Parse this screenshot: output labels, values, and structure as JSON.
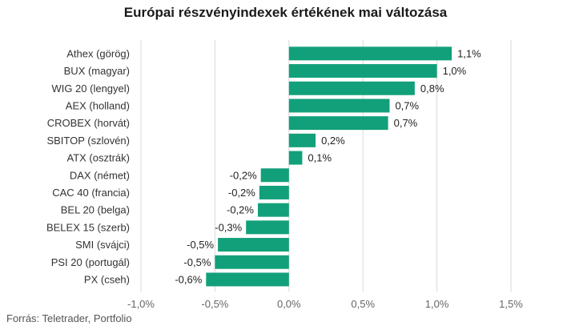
{
  "chart_data": {
    "type": "bar",
    "orientation": "horizontal",
    "title": "Európai részvényindexek értékének mai változása",
    "source": "Forrás: Teletrader, Portfolio",
    "categories": [
      "Athex (görög)",
      "BUX (magyar)",
      "WIG 20 (lengyel)",
      "AEX (holland)",
      "CROBEX (horvát)",
      "SBITOP (szlovén)",
      "ATX (osztrák)",
      "DAX (német)",
      "CAC 40 (francia)",
      "BEL 20 (belga)",
      "BELEX 15 (szerb)",
      "SMI (svájci)",
      "PSI 20 (portugál)",
      "PX (cseh)"
    ],
    "values": [
      1.1,
      1.0,
      0.85,
      0.68,
      0.67,
      0.18,
      0.09,
      -0.19,
      -0.2,
      -0.21,
      -0.29,
      -0.48,
      -0.5,
      -0.56
    ],
    "value_labels": [
      "1,1%",
      "1,0%",
      "0,8%",
      "0,7%",
      "0,7%",
      "0,2%",
      "0,1%",
      "-0,2%",
      "-0,2%",
      "-0,2%",
      "-0,3%",
      "-0,5%",
      "-0,5%",
      "-0,6%"
    ],
    "xlim": [
      -1.0,
      1.5
    ],
    "xticks": [
      -1.0,
      -0.5,
      0.0,
      0.5,
      1.0,
      1.5
    ],
    "xtick_labels": [
      "-1,0%",
      "-0,5%",
      "0,0%",
      "0,5%",
      "1,0%",
      "1,5%"
    ],
    "grid": true,
    "colors": {
      "bar": "#12a07a",
      "grid": "#d9d9d9",
      "text": "#333333"
    }
  }
}
